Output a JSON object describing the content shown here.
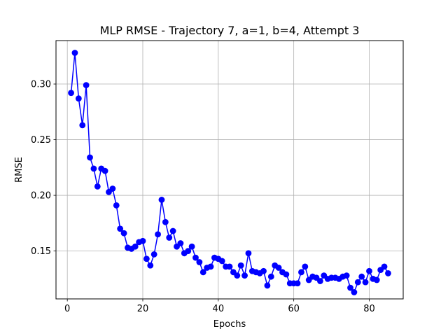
{
  "chart_data": {
    "type": "line",
    "title": "MLP RMSE - Trajectory 7, a=1, b=4, Attempt 3",
    "xlabel": "Epochs",
    "ylabel": "RMSE",
    "xlim": [
      -3,
      89
    ],
    "ylim": [
      0.107,
      0.339
    ],
    "xticks": [
      0,
      20,
      40,
      60,
      80
    ],
    "yticks": [
      0.15,
      0.2,
      0.25,
      0.3
    ],
    "xtick_labels": [
      "0",
      "20",
      "40",
      "60",
      "80"
    ],
    "ytick_labels": [
      "0.15",
      "0.20",
      "0.25",
      "0.30"
    ],
    "grid": true,
    "series": [
      {
        "color": "#0000ff",
        "marker": "circle",
        "x": [
          1,
          2,
          3,
          4,
          5,
          6,
          7,
          8,
          9,
          10,
          11,
          12,
          13,
          14,
          15,
          16,
          17,
          18,
          19,
          20,
          21,
          22,
          23,
          24,
          25,
          26,
          27,
          28,
          29,
          30,
          31,
          32,
          33,
          34,
          35,
          36,
          37,
          38,
          39,
          40,
          41,
          42,
          43,
          44,
          45,
          46,
          47,
          48,
          49,
          50,
          51,
          52,
          53,
          54,
          55,
          56,
          57,
          58,
          59,
          60,
          61,
          62,
          63,
          64,
          65,
          66,
          67,
          68,
          69,
          70,
          71,
          72,
          73,
          74,
          75,
          76,
          77,
          78,
          79,
          80,
          81,
          82,
          83,
          84,
          85
        ],
        "y": [
          0.292,
          0.328,
          0.287,
          0.263,
          0.299,
          0.234,
          0.224,
          0.208,
          0.224,
          0.222,
          0.203,
          0.206,
          0.191,
          0.17,
          0.166,
          0.153,
          0.152,
          0.154,
          0.158,
          0.159,
          0.143,
          0.137,
          0.147,
          0.165,
          0.196,
          0.176,
          0.162,
          0.168,
          0.154,
          0.157,
          0.148,
          0.15,
          0.154,
          0.144,
          0.14,
          0.131,
          0.135,
          0.136,
          0.144,
          0.143,
          0.141,
          0.136,
          0.136,
          0.131,
          0.128,
          0.137,
          0.128,
          0.148,
          0.132,
          0.131,
          0.13,
          0.132,
          0.119,
          0.127,
          0.137,
          0.135,
          0.131,
          0.129,
          0.121,
          0.121,
          0.121,
          0.131,
          0.136,
          0.124,
          0.127,
          0.126,
          0.123,
          0.128,
          0.125,
          0.126,
          0.126,
          0.125,
          0.127,
          0.128,
          0.117,
          0.113,
          0.122,
          0.127,
          0.122,
          0.132,
          0.125,
          0.124,
          0.133,
          0.136,
          0.13
        ]
      }
    ]
  }
}
